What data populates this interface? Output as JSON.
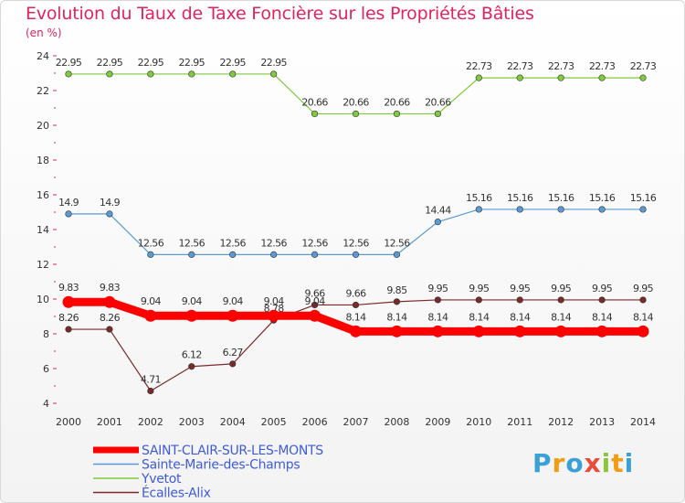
{
  "chart_data": {
    "type": "line",
    "title": "Evolution du Taux de Taxe Foncière sur les Propriétés Bâties",
    "ylabel": "(en %)",
    "xlabel": "",
    "ylim": [
      4,
      24
    ],
    "yticks": [
      "4",
      "6",
      "8",
      "10",
      "12",
      "14",
      "16",
      "18",
      "20",
      "22",
      "24"
    ],
    "categories": [
      "2000",
      "2001",
      "2002",
      "2003",
      "2004",
      "2005",
      "2006",
      "2007",
      "2008",
      "2009",
      "2010",
      "2011",
      "2012",
      "2013",
      "2014"
    ],
    "series": [
      {
        "name": "Yvetot",
        "color": "#7fca3d",
        "values": [
          22.95,
          22.95,
          22.95,
          22.95,
          22.95,
          22.95,
          20.66,
          20.66,
          20.66,
          20.66,
          22.73,
          22.73,
          22.73,
          22.73,
          22.73
        ],
        "labels": [
          "22.95",
          "22.95",
          "22.95",
          "22.95",
          "22.95",
          "22.95",
          "20.66",
          "20.66",
          "20.66",
          "20.66",
          "22.73",
          "22.73",
          "22.73",
          "22.73",
          "22.73"
        ]
      },
      {
        "name": "Sainte-Marie-des-Champs",
        "color": "#5b9bd5",
        "values": [
          14.9,
          14.9,
          12.56,
          12.56,
          12.56,
          12.56,
          12.56,
          12.56,
          12.56,
          14.44,
          15.16,
          15.16,
          15.16,
          15.16,
          15.16
        ],
        "labels": [
          "14.9",
          "14.9",
          "12.56",
          "12.56",
          "12.56",
          "12.56",
          "12.56",
          "12.56",
          "12.56",
          "14.44",
          "15.16",
          "15.16",
          "15.16",
          "15.16",
          "15.16"
        ]
      },
      {
        "name": "Écalles-Alix",
        "color": "#7a2a2a",
        "values": [
          8.26,
          8.26,
          4.71,
          6.12,
          6.27,
          8.78,
          9.66,
          9.66,
          9.85,
          9.95,
          9.95,
          9.95,
          9.95,
          9.95,
          9.95
        ],
        "labels": [
          "8.26",
          "8.26",
          "4.71",
          "6.12",
          "6.27",
          "8.78",
          "9.66",
          "9.66",
          "9.85",
          "9.95",
          "9.95",
          "9.95",
          "9.95",
          "9.95",
          "9.95"
        ]
      },
      {
        "name": "SAINT-CLAIR-SUR-LES-MONTS",
        "color": "#ff0000",
        "values": [
          9.83,
          9.83,
          9.04,
          9.04,
          9.04,
          9.04,
          9.04,
          8.14,
          8.14,
          8.14,
          8.14,
          8.14,
          8.14,
          8.14,
          8.14
        ],
        "labels": [
          "9.83",
          "9.83",
          "9.04",
          "9.04",
          "9.04",
          "9.04",
          "9.04",
          "8.14",
          "8.14",
          "8.14",
          "8.14",
          "8.14",
          "8.14",
          "8.14",
          "8.14"
        ]
      }
    ],
    "legend": [
      "SAINT-CLAIR-SUR-LES-MONTS",
      "Sainte-Marie-des-Champs",
      "Yvetot",
      "Écalles-Alix"
    ]
  },
  "branding": {
    "logo_letters": [
      "P",
      "r",
      "o",
      "x",
      "i",
      "t",
      "i"
    ],
    "logo_colors": [
      "#3aa0d8",
      "#f39c12",
      "#3aa0d8",
      "#e74c3c",
      "#8cc63f",
      "#f39c12",
      "#3aa0d8"
    ]
  }
}
